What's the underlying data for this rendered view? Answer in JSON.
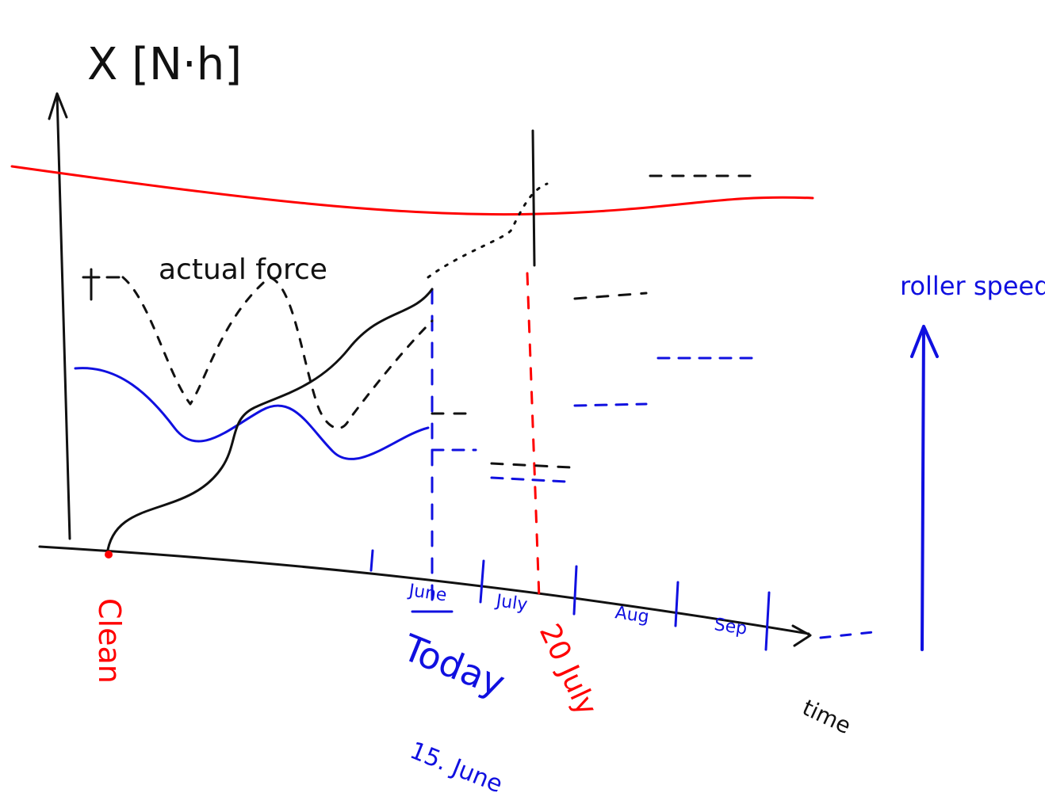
{
  "axis": {
    "y_label": "X [N·h]",
    "x_label": "time"
  },
  "legend": {
    "force": "actual force",
    "speed": "roller speed"
  },
  "months": [
    "June",
    "July",
    "Aug",
    "Sep"
  ],
  "markers": {
    "clean": "Clean",
    "today": "Today",
    "today_date": "15. June",
    "deadline": "20 July"
  }
}
